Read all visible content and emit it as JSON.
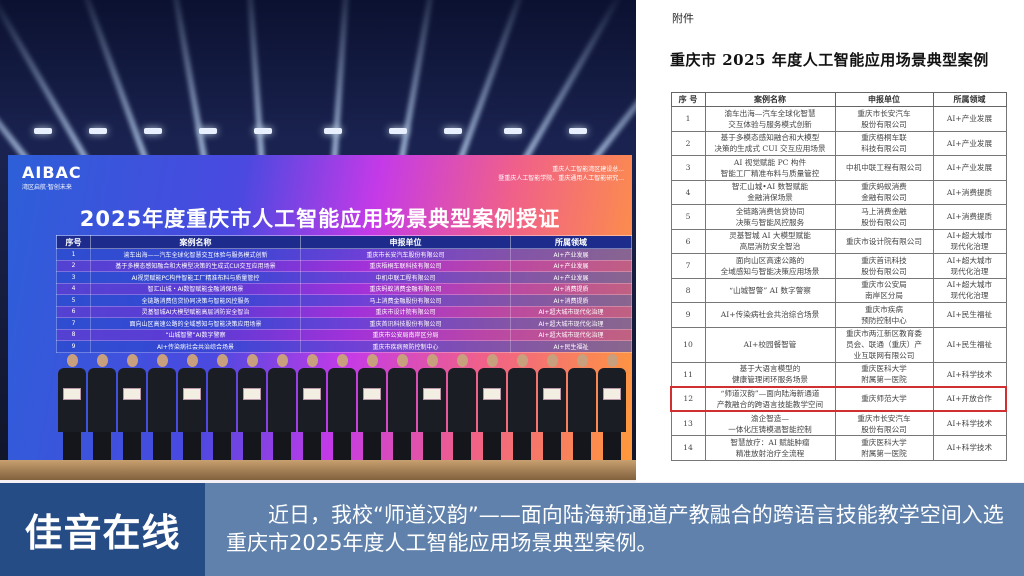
{
  "photo": {
    "screen": {
      "logo": "AIBAC",
      "logo_slogan": "湾区启航·智创未来",
      "organizers": [
        "重庆人工智能湾区建设总...",
        "暨重庆人工智能学院、重庆通用人工智能研究..."
      ],
      "title": "2025年度重庆市人工智能应用场景典型案例授证",
      "headers": [
        "序号",
        "案例名称",
        "申报单位",
        "所属领域"
      ],
      "rows": [
        [
          "1",
          "渝车出海——汽车全球化智慧交互体验与服务模式创新",
          "重庆市长安汽车股份有限公司",
          "AI+产业发展"
        ],
        [
          "2",
          "基于多模态感知融合和大模型决策的生成式CUI交互应用场景",
          "重庆梧桐车联科技有限公司",
          "AI+产业发展"
        ],
        [
          "3",
          "AI视觉赋能PC构件智能工厂精准布料与质量管控",
          "中机中联工程有限公司",
          "AI+产业发展"
        ],
        [
          "4",
          "智汇山城・AI数智赋能金融消保场景",
          "重庆蚂蚁消费金融有限公司",
          "AI+消费提质"
        ],
        [
          "5",
          "全链路消费信贷协同决策与智能风控服务",
          "马上消费金融股份有限公司",
          "AI+消费提质"
        ],
        [
          "6",
          "灵基智城AI大模型赋能高层消防安全智治",
          "重庆市设计院有限公司",
          "AI+超大城市现代化治理"
        ],
        [
          "7",
          "面向山区高速公路的全域感知与智能决策应用场景",
          "重庆首讯科技股份有限公司",
          "AI+超大城市现代化治理"
        ],
        [
          "8",
          "“山城智警”AI数字警察",
          "重庆市公安局南岸区分局",
          "AI+超大城市现代化治理"
        ],
        [
          "9",
          "AI+传染病社会共治综合场景",
          "重庆市疾病预防控制中心",
          "AI+民生福祉"
        ]
      ]
    }
  },
  "document": {
    "annex_label": "附件",
    "title": "重庆市 2025 年度人工智能应用场景典型案例",
    "headers": [
      "序 号",
      "案例名称",
      "申报单位",
      "所属领域"
    ],
    "rows": [
      {
        "no": "1",
        "name": [
          "渝车出海—汽车全球化智慧",
          "交互体验与服务模式创新"
        ],
        "unit": [
          "重庆市长安汽车",
          "股份有限公司"
        ],
        "field": [
          "AI+产业发展"
        ]
      },
      {
        "no": "2",
        "name": [
          "基于多模态感知融合和大模型",
          "决策的生成式 CUI 交互应用场景"
        ],
        "unit": [
          "重庆梧桐车联",
          "科技有限公司"
        ],
        "field": [
          "AI+产业发展"
        ]
      },
      {
        "no": "3",
        "name": [
          "AI 视觉赋能 PC 构件",
          "智能工厂精准布料与质量管控"
        ],
        "unit": [
          "中机中联工程有限公司"
        ],
        "field": [
          "AI+产业发展"
        ]
      },
      {
        "no": "4",
        "name": [
          "智汇山城•AI 数智赋能",
          "金融消保场景"
        ],
        "unit": [
          "重庆蚂蚁消费",
          "金融有限公司"
        ],
        "field": [
          "AI+消费提质"
        ]
      },
      {
        "no": "5",
        "name": [
          "全链路消费信贷协同",
          "决策与智能风控服务"
        ],
        "unit": [
          "马上消费金融",
          "股份有限公司"
        ],
        "field": [
          "AI+消费提质"
        ]
      },
      {
        "no": "6",
        "name": [
          "灵基智城 AI 大模型赋能",
          "高层消防安全智治"
        ],
        "unit": [
          "重庆市设计院有限公司"
        ],
        "field": [
          "AI+超大城市",
          "现代化治理"
        ]
      },
      {
        "no": "7",
        "name": [
          "面向山区高速公路的",
          "全域感知与智能决策应用场景"
        ],
        "unit": [
          "重庆首讯科技",
          "股份有限公司"
        ],
        "field": [
          "AI+超大城市",
          "现代化治理"
        ]
      },
      {
        "no": "8",
        "name": [
          "“山城智警” AI 数字警察"
        ],
        "unit": [
          "重庆市公安局",
          "南岸区分局"
        ],
        "field": [
          "AI+超大城市",
          "现代化治理"
        ]
      },
      {
        "no": "9",
        "name": [
          "AI+传染病社会共治综合场景"
        ],
        "unit": [
          "重庆市疾病",
          "预防控制中心"
        ],
        "field": [
          "AI+民生福祉"
        ]
      },
      {
        "no": "10",
        "name": [
          "AI+校园餐智管"
        ],
        "unit": [
          "重庆市两江新区教育委",
          "员会、联通（重庆）产",
          "业互联网有限公司"
        ],
        "field": [
          "AI+民生福祉"
        ]
      },
      {
        "no": "11",
        "name": [
          "基于大语言模型的",
          "健康管理闭环服务场景"
        ],
        "unit": [
          "重庆医科大学",
          "附属第一医院"
        ],
        "field": [
          "AI+科学技术"
        ]
      },
      {
        "no": "12",
        "name": [
          "“师道汉韵”—面向陆海新通道",
          "产教融合的跨语言技能教学空间"
        ],
        "unit": [
          "重庆师范大学"
        ],
        "field": [
          "AI+开放合作"
        ],
        "highlighted": true
      },
      {
        "no": "13",
        "name": [
          "渝企智造—",
          "一体化压铸模温智能控制"
        ],
        "unit": [
          "重庆市长安汽车",
          "股份有限公司"
        ],
        "field": [
          "AI+科学技术"
        ]
      },
      {
        "no": "14",
        "name": [
          "智慧放疗：AI 赋能肿瘤",
          "精准放射治疗全流程"
        ],
        "unit": [
          "重庆医科大学",
          "附属第一医院"
        ],
        "field": [
          "AI+科学技术"
        ]
      }
    ],
    "highlight_color": "#d03030"
  },
  "banner": {
    "label": "佳音在线",
    "text": "近日，我校“师道汉韵”——面向陆海新通道产教融合的跨语言技能教学空间入选重庆市2025年度人工智能应用场景典型案例。",
    "label_bg": "#264c86",
    "text_bg": "#5f81ab"
  }
}
